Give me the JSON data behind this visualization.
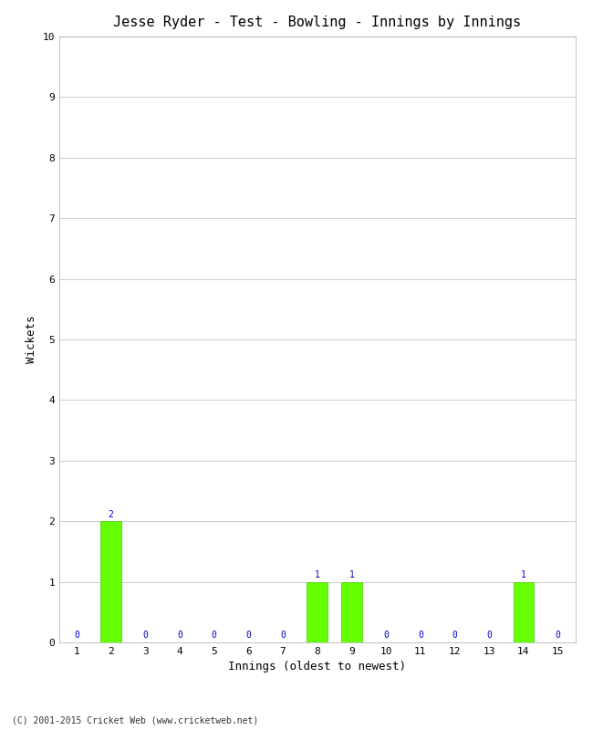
{
  "title": "Jesse Ryder - Test - Bowling - Innings by Innings",
  "xlabel": "Innings (oldest to newest)",
  "ylabel": "Wickets",
  "innings": [
    1,
    2,
    3,
    4,
    5,
    6,
    7,
    8,
    9,
    10,
    11,
    12,
    13,
    14,
    15
  ],
  "wickets": [
    0,
    2,
    0,
    0,
    0,
    0,
    0,
    1,
    1,
    0,
    0,
    0,
    0,
    1,
    0
  ],
  "bar_color": "#66ff00",
  "bar_edge_color": "#44cc00",
  "ylim": [
    0,
    10
  ],
  "yticks": [
    0,
    1,
    2,
    3,
    4,
    5,
    6,
    7,
    8,
    9,
    10
  ],
  "label_color": "#0000cc",
  "background_color": "#ffffff",
  "grid_color": "#cccccc",
  "title_fontsize": 11,
  "axis_label_fontsize": 9,
  "tick_fontsize": 8,
  "value_label_fontsize": 7,
  "footer_text": "(C) 2001-2015 Cricket Web (www.cricketweb.net)",
  "footer_fontsize": 7
}
